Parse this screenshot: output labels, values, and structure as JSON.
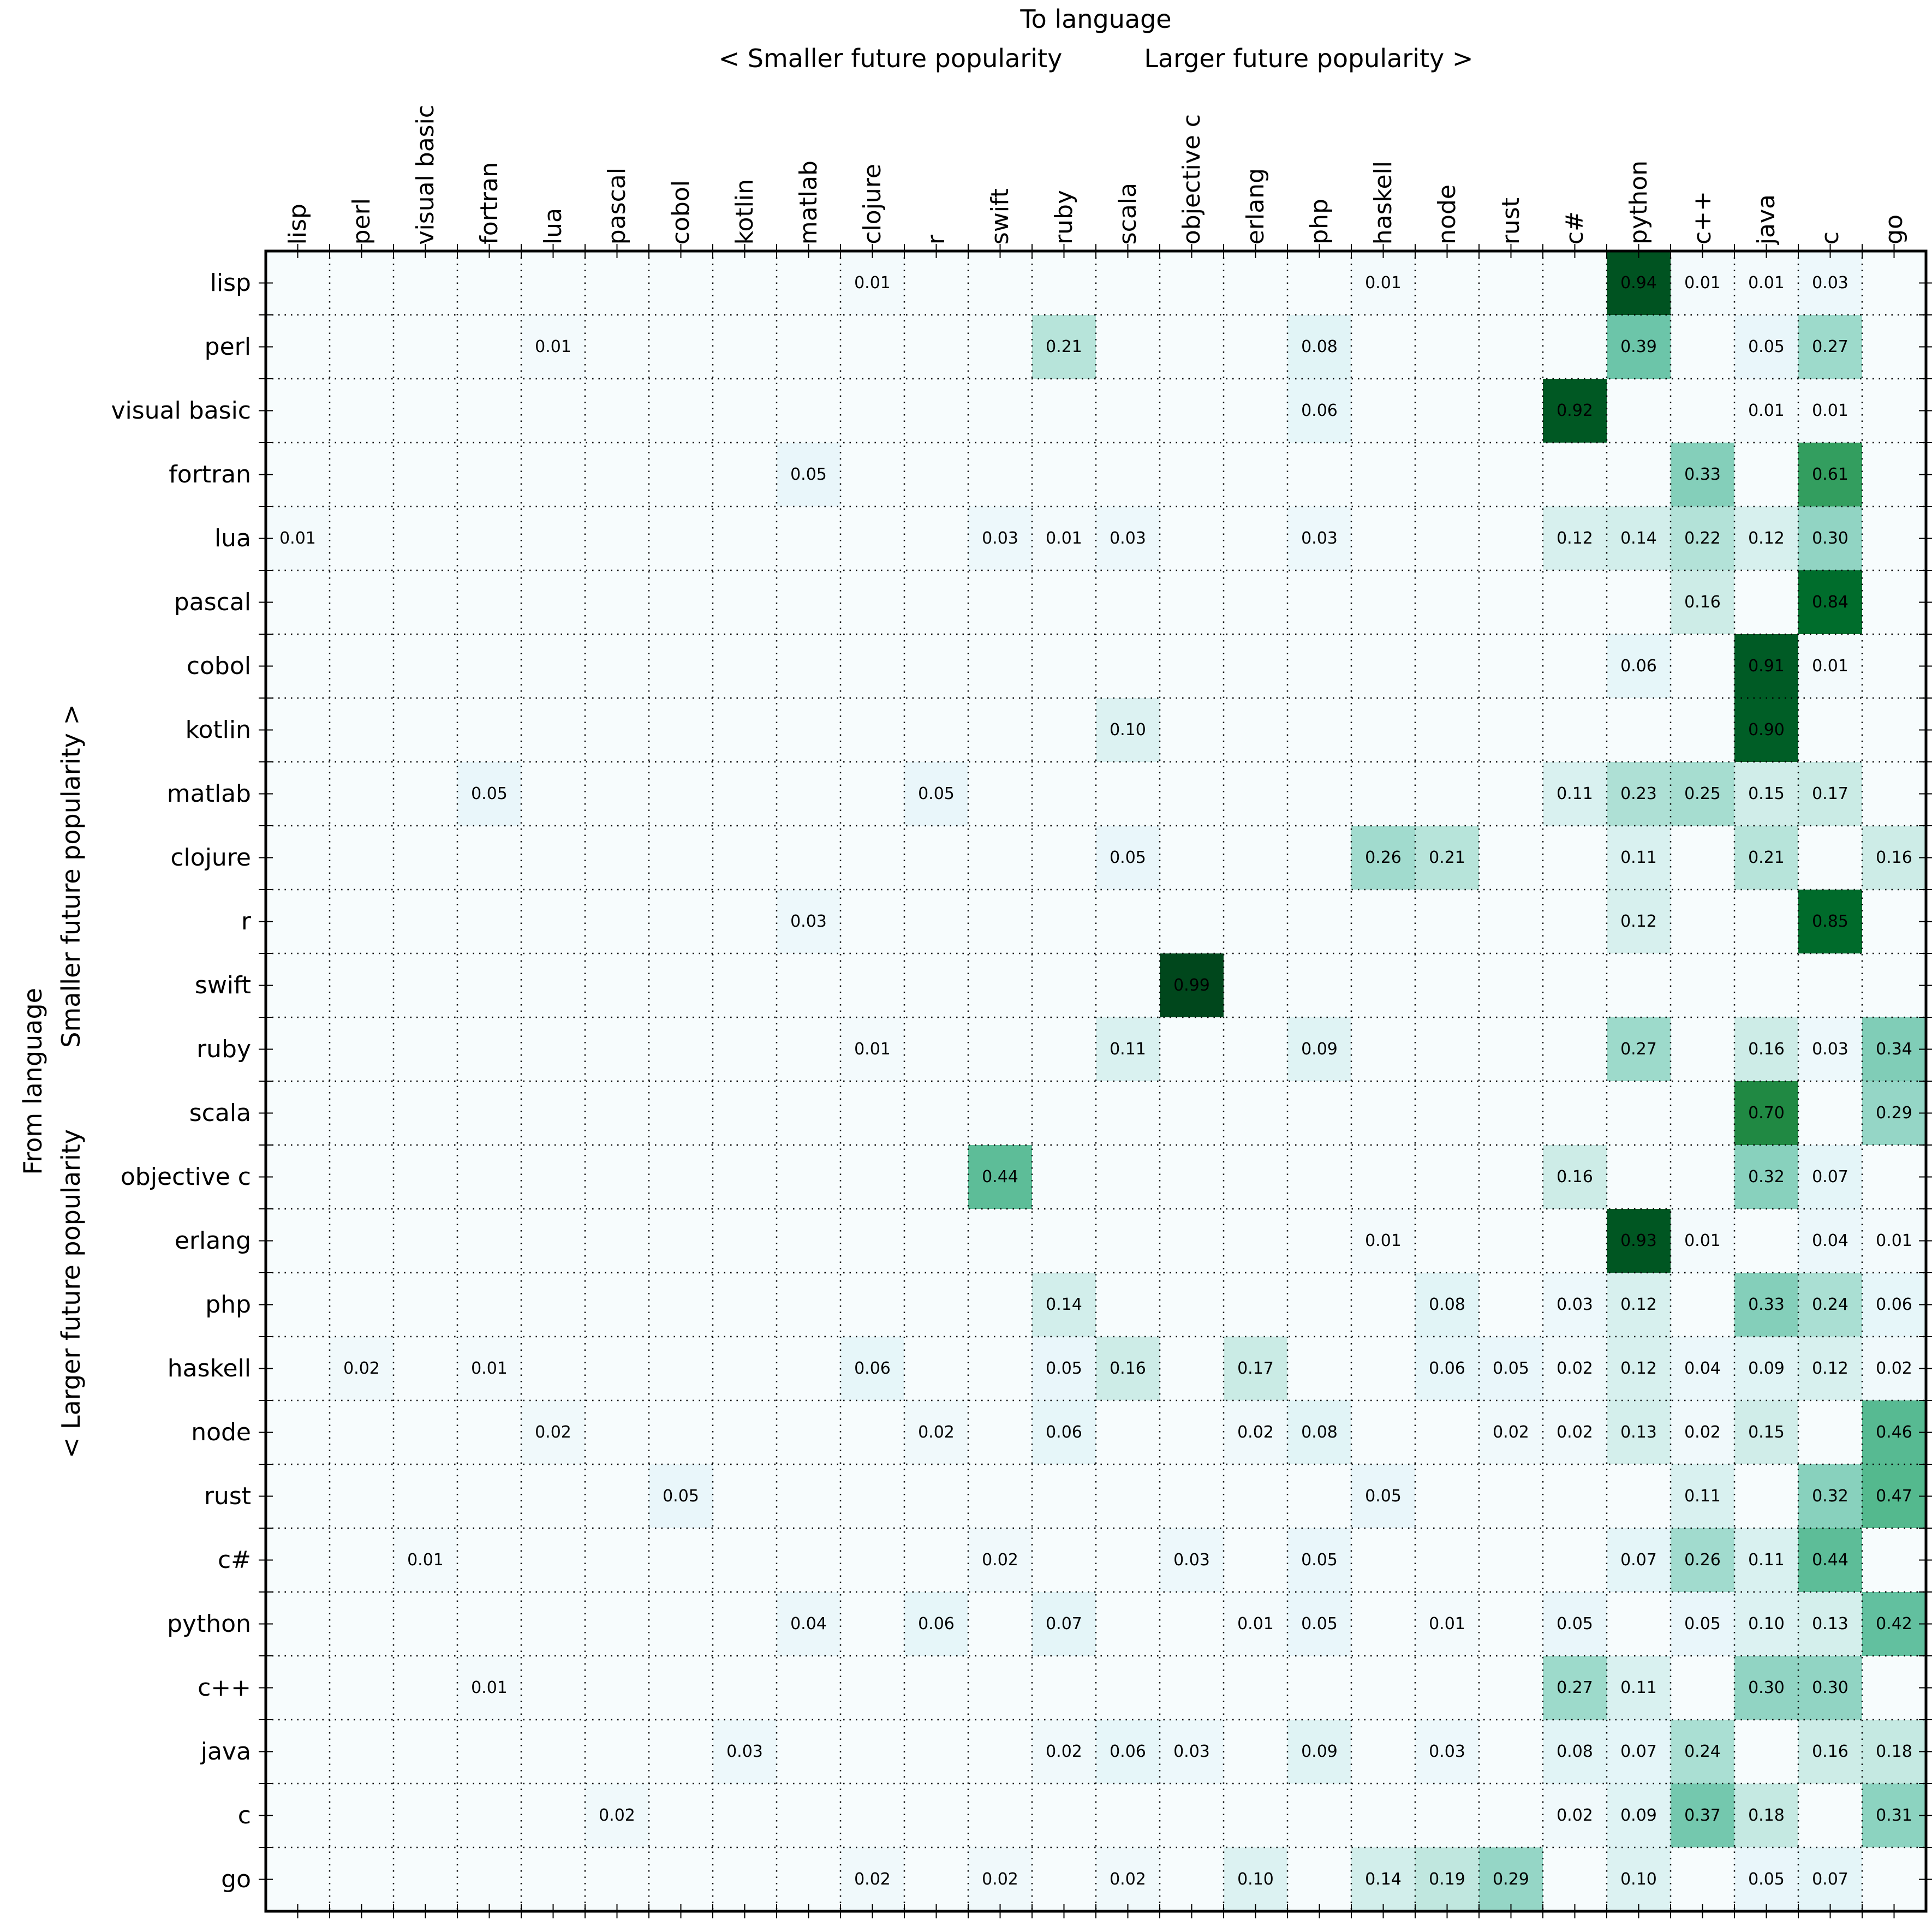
{
  "top_axis": {
    "title": "To language",
    "left_label": "< Smaller future popularity",
    "right_label": "Larger future popularity >"
  },
  "left_axis": {
    "title": "From language",
    "top_label": "Smaller future popularity >",
    "bottom_label": "< Larger future popularity"
  },
  "chart_data": {
    "type": "heatmap",
    "title": "To language",
    "xlabel": "To language (< Smaller future popularity ... Larger future popularity >)",
    "ylabel": "From language (< Larger future popularity ... Smaller future popularity >)",
    "grid": "dotted",
    "value_range": [
      0,
      1
    ],
    "colormap": {
      "name": "BuGn",
      "gamma": 0.77,
      "stops": [
        "#f7fcfd",
        "#e5f5f9",
        "#ccece6",
        "#99d8c9",
        "#66c2a4",
        "#41ae76",
        "#238b45",
        "#006d2c",
        "#00441b"
      ],
      "empty": "#f7fcfd"
    },
    "languages": [
      "lisp",
      "perl",
      "visual basic",
      "fortran",
      "lua",
      "pascal",
      "cobol",
      "kotlin",
      "matlab",
      "clojure",
      "r",
      "swift",
      "ruby",
      "scala",
      "objective c",
      "erlang",
      "php",
      "haskell",
      "node",
      "rust",
      "c#",
      "python",
      "c++",
      "java",
      "c",
      "go"
    ],
    "cells": [
      {
        "from": "lisp",
        "to": "clojure",
        "v": 0.01
      },
      {
        "from": "lisp",
        "to": "haskell",
        "v": 0.01
      },
      {
        "from": "lisp",
        "to": "python",
        "v": 0.94
      },
      {
        "from": "lisp",
        "to": "c++",
        "v": 0.01
      },
      {
        "from": "lisp",
        "to": "java",
        "v": 0.01
      },
      {
        "from": "lisp",
        "to": "c",
        "v": 0.03
      },
      {
        "from": "perl",
        "to": "lua",
        "v": 0.01
      },
      {
        "from": "perl",
        "to": "ruby",
        "v": 0.21
      },
      {
        "from": "perl",
        "to": "php",
        "v": 0.08
      },
      {
        "from": "perl",
        "to": "python",
        "v": 0.39
      },
      {
        "from": "perl",
        "to": "java",
        "v": 0.05
      },
      {
        "from": "perl",
        "to": "c",
        "v": 0.27
      },
      {
        "from": "visual basic",
        "to": "php",
        "v": 0.06
      },
      {
        "from": "visual basic",
        "to": "c#",
        "v": 0.92
      },
      {
        "from": "visual basic",
        "to": "java",
        "v": 0.01
      },
      {
        "from": "visual basic",
        "to": "c",
        "v": 0.01
      },
      {
        "from": "fortran",
        "to": "matlab",
        "v": 0.05
      },
      {
        "from": "fortran",
        "to": "c++",
        "v": 0.33
      },
      {
        "from": "fortran",
        "to": "c",
        "v": 0.61
      },
      {
        "from": "lua",
        "to": "lisp",
        "v": 0.01
      },
      {
        "from": "lua",
        "to": "swift",
        "v": 0.03
      },
      {
        "from": "lua",
        "to": "ruby",
        "v": 0.01
      },
      {
        "from": "lua",
        "to": "scala",
        "v": 0.03
      },
      {
        "from": "lua",
        "to": "php",
        "v": 0.03
      },
      {
        "from": "lua",
        "to": "c#",
        "v": 0.12
      },
      {
        "from": "lua",
        "to": "python",
        "v": 0.14
      },
      {
        "from": "lua",
        "to": "c++",
        "v": 0.22
      },
      {
        "from": "lua",
        "to": "java",
        "v": 0.12
      },
      {
        "from": "lua",
        "to": "c",
        "v": 0.3
      },
      {
        "from": "pascal",
        "to": "c++",
        "v": 0.16
      },
      {
        "from": "pascal",
        "to": "c",
        "v": 0.84
      },
      {
        "from": "cobol",
        "to": "python",
        "v": 0.06
      },
      {
        "from": "cobol",
        "to": "java",
        "v": 0.91
      },
      {
        "from": "cobol",
        "to": "c",
        "v": 0.01
      },
      {
        "from": "kotlin",
        "to": "scala",
        "v": 0.1
      },
      {
        "from": "kotlin",
        "to": "java",
        "v": 0.9
      },
      {
        "from": "matlab",
        "to": "fortran",
        "v": 0.05
      },
      {
        "from": "matlab",
        "to": "r",
        "v": 0.05
      },
      {
        "from": "matlab",
        "to": "c#",
        "v": 0.11
      },
      {
        "from": "matlab",
        "to": "python",
        "v": 0.23
      },
      {
        "from": "matlab",
        "to": "c++",
        "v": 0.25
      },
      {
        "from": "matlab",
        "to": "java",
        "v": 0.15
      },
      {
        "from": "matlab",
        "to": "c",
        "v": 0.17
      },
      {
        "from": "clojure",
        "to": "scala",
        "v": 0.05
      },
      {
        "from": "clojure",
        "to": "haskell",
        "v": 0.26
      },
      {
        "from": "clojure",
        "to": "node",
        "v": 0.21
      },
      {
        "from": "clojure",
        "to": "python",
        "v": 0.11
      },
      {
        "from": "clojure",
        "to": "java",
        "v": 0.21
      },
      {
        "from": "clojure",
        "to": "go",
        "v": 0.16
      },
      {
        "from": "r",
        "to": "matlab",
        "v": 0.03
      },
      {
        "from": "r",
        "to": "python",
        "v": 0.12
      },
      {
        "from": "r",
        "to": "c",
        "v": 0.85
      },
      {
        "from": "swift",
        "to": "objective c",
        "v": 0.99
      },
      {
        "from": "ruby",
        "to": "clojure",
        "v": 0.01
      },
      {
        "from": "ruby",
        "to": "scala",
        "v": 0.11
      },
      {
        "from": "ruby",
        "to": "php",
        "v": 0.09
      },
      {
        "from": "ruby",
        "to": "python",
        "v": 0.27
      },
      {
        "from": "ruby",
        "to": "java",
        "v": 0.16
      },
      {
        "from": "ruby",
        "to": "c",
        "v": 0.03
      },
      {
        "from": "ruby",
        "to": "go",
        "v": 0.34
      },
      {
        "from": "scala",
        "to": "java",
        "v": 0.7
      },
      {
        "from": "scala",
        "to": "go",
        "v": 0.29
      },
      {
        "from": "objective c",
        "to": "swift",
        "v": 0.44
      },
      {
        "from": "objective c",
        "to": "c#",
        "v": 0.16
      },
      {
        "from": "objective c",
        "to": "java",
        "v": 0.32
      },
      {
        "from": "objective c",
        "to": "c",
        "v": 0.07
      },
      {
        "from": "erlang",
        "to": "haskell",
        "v": 0.01
      },
      {
        "from": "erlang",
        "to": "python",
        "v": 0.93
      },
      {
        "from": "erlang",
        "to": "c++",
        "v": 0.01
      },
      {
        "from": "erlang",
        "to": "c",
        "v": 0.04
      },
      {
        "from": "erlang",
        "to": "go",
        "v": 0.01
      },
      {
        "from": "php",
        "to": "ruby",
        "v": 0.14
      },
      {
        "from": "php",
        "to": "node",
        "v": 0.08
      },
      {
        "from": "php",
        "to": "c#",
        "v": 0.03
      },
      {
        "from": "php",
        "to": "python",
        "v": 0.12
      },
      {
        "from": "php",
        "to": "java",
        "v": 0.33
      },
      {
        "from": "php",
        "to": "c",
        "v": 0.24
      },
      {
        "from": "php",
        "to": "go",
        "v": 0.06
      },
      {
        "from": "haskell",
        "to": "perl",
        "v": 0.02
      },
      {
        "from": "haskell",
        "to": "fortran",
        "v": 0.01
      },
      {
        "from": "haskell",
        "to": "clojure",
        "v": 0.06
      },
      {
        "from": "haskell",
        "to": "ruby",
        "v": 0.05
      },
      {
        "from": "haskell",
        "to": "scala",
        "v": 0.16
      },
      {
        "from": "haskell",
        "to": "erlang",
        "v": 0.17
      },
      {
        "from": "haskell",
        "to": "node",
        "v": 0.06
      },
      {
        "from": "haskell",
        "to": "rust",
        "v": 0.05
      },
      {
        "from": "haskell",
        "to": "c#",
        "v": 0.02
      },
      {
        "from": "haskell",
        "to": "python",
        "v": 0.12
      },
      {
        "from": "haskell",
        "to": "c++",
        "v": 0.04
      },
      {
        "from": "haskell",
        "to": "java",
        "v": 0.09
      },
      {
        "from": "haskell",
        "to": "c",
        "v": 0.12
      },
      {
        "from": "haskell",
        "to": "go",
        "v": 0.02
      },
      {
        "from": "node",
        "to": "lua",
        "v": 0.02
      },
      {
        "from": "node",
        "to": "r",
        "v": 0.02
      },
      {
        "from": "node",
        "to": "ruby",
        "v": 0.06
      },
      {
        "from": "node",
        "to": "erlang",
        "v": 0.02
      },
      {
        "from": "node",
        "to": "php",
        "v": 0.08
      },
      {
        "from": "node",
        "to": "rust",
        "v": 0.02
      },
      {
        "from": "node",
        "to": "c#",
        "v": 0.02
      },
      {
        "from": "node",
        "to": "python",
        "v": 0.13
      },
      {
        "from": "node",
        "to": "c++",
        "v": 0.02
      },
      {
        "from": "node",
        "to": "java",
        "v": 0.15
      },
      {
        "from": "node",
        "to": "go",
        "v": 0.46
      },
      {
        "from": "rust",
        "to": "cobol",
        "v": 0.05
      },
      {
        "from": "rust",
        "to": "haskell",
        "v": 0.05
      },
      {
        "from": "rust",
        "to": "c++",
        "v": 0.11
      },
      {
        "from": "rust",
        "to": "c",
        "v": 0.32
      },
      {
        "from": "rust",
        "to": "go",
        "v": 0.47
      },
      {
        "from": "c#",
        "to": "visual basic",
        "v": 0.01
      },
      {
        "from": "c#",
        "to": "swift",
        "v": 0.02
      },
      {
        "from": "c#",
        "to": "objective c",
        "v": 0.03
      },
      {
        "from": "c#",
        "to": "php",
        "v": 0.05
      },
      {
        "from": "c#",
        "to": "python",
        "v": 0.07
      },
      {
        "from": "c#",
        "to": "c++",
        "v": 0.26
      },
      {
        "from": "c#",
        "to": "java",
        "v": 0.11
      },
      {
        "from": "c#",
        "to": "c",
        "v": 0.44
      },
      {
        "from": "python",
        "to": "matlab",
        "v": 0.04
      },
      {
        "from": "python",
        "to": "r",
        "v": 0.06
      },
      {
        "from": "python",
        "to": "ruby",
        "v": 0.07
      },
      {
        "from": "python",
        "to": "erlang",
        "v": 0.01
      },
      {
        "from": "python",
        "to": "php",
        "v": 0.05
      },
      {
        "from": "python",
        "to": "node",
        "v": 0.01
      },
      {
        "from": "python",
        "to": "c#",
        "v": 0.05
      },
      {
        "from": "python",
        "to": "c++",
        "v": 0.05
      },
      {
        "from": "python",
        "to": "java",
        "v": 0.1
      },
      {
        "from": "python",
        "to": "c",
        "v": 0.13
      },
      {
        "from": "python",
        "to": "go",
        "v": 0.42
      },
      {
        "from": "c++",
        "to": "fortran",
        "v": 0.01
      },
      {
        "from": "c++",
        "to": "c#",
        "v": 0.27
      },
      {
        "from": "c++",
        "to": "python",
        "v": 0.11
      },
      {
        "from": "c++",
        "to": "java",
        "v": 0.3
      },
      {
        "from": "c++",
        "to": "c",
        "v": 0.3
      },
      {
        "from": "java",
        "to": "kotlin",
        "v": 0.03
      },
      {
        "from": "java",
        "to": "ruby",
        "v": 0.02
      },
      {
        "from": "java",
        "to": "scala",
        "v": 0.06
      },
      {
        "from": "java",
        "to": "objective c",
        "v": 0.03
      },
      {
        "from": "java",
        "to": "php",
        "v": 0.09
      },
      {
        "from": "java",
        "to": "node",
        "v": 0.03
      },
      {
        "from": "java",
        "to": "c#",
        "v": 0.08
      },
      {
        "from": "java",
        "to": "python",
        "v": 0.07
      },
      {
        "from": "java",
        "to": "c++",
        "v": 0.24
      },
      {
        "from": "java",
        "to": "c",
        "v": 0.16
      },
      {
        "from": "java",
        "to": "go",
        "v": 0.18
      },
      {
        "from": "c",
        "to": "pascal",
        "v": 0.02
      },
      {
        "from": "c",
        "to": "c#",
        "v": 0.02
      },
      {
        "from": "c",
        "to": "python",
        "v": 0.09
      },
      {
        "from": "c",
        "to": "c++",
        "v": 0.37
      },
      {
        "from": "c",
        "to": "java",
        "v": 0.18
      },
      {
        "from": "c",
        "to": "go",
        "v": 0.31
      },
      {
        "from": "go",
        "to": "clojure",
        "v": 0.02
      },
      {
        "from": "go",
        "to": "swift",
        "v": 0.02
      },
      {
        "from": "go",
        "to": "scala",
        "v": 0.02
      },
      {
        "from": "go",
        "to": "erlang",
        "v": 0.1
      },
      {
        "from": "go",
        "to": "haskell",
        "v": 0.14
      },
      {
        "from": "go",
        "to": "node",
        "v": 0.19
      },
      {
        "from": "go",
        "to": "rust",
        "v": 0.29
      },
      {
        "from": "go",
        "to": "python",
        "v": 0.1
      },
      {
        "from": "go",
        "to": "java",
        "v": 0.05
      },
      {
        "from": "go",
        "to": "c",
        "v": 0.07
      }
    ]
  }
}
